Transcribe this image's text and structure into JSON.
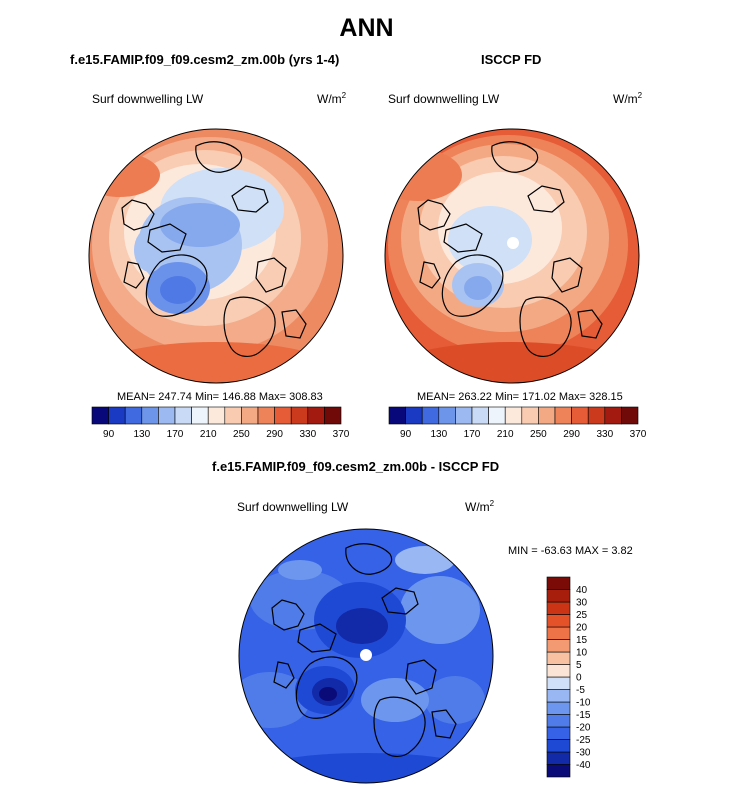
{
  "page_title": "ANN",
  "panels": [
    {
      "title": "f.e15.FAMIP.f09_f09.cesm2_zm.00b (yrs 1-4)",
      "variable": "Surf downwelling LW",
      "units": "W/m",
      "units_sup": "2",
      "stats": "MEAN= 247.74  Min= 146.88  Max= 308.83"
    },
    {
      "title": "ISCCP FD",
      "variable": "Surf downwelling LW",
      "units": "W/m",
      "units_sup": "2",
      "stats": "MEAN= 263.22  Min= 171.02  Max= 328.15"
    },
    {
      "title": "f.e15.FAMIP.f09_f09.cesm2_zm.00b - ISCCP FD",
      "variable": "Surf downwelling LW",
      "units": "W/m",
      "units_sup": "2",
      "stats": "MIN = -63.63 MAX =   3.82"
    }
  ],
  "chart_data": [
    {
      "type": "heatmap",
      "projection": "north-polar-stereographic",
      "colorbar_orientation": "horizontal",
      "colorbar_ticks": [
        "90",
        "130",
        "170",
        "210",
        "250",
        "290",
        "330",
        "370"
      ],
      "colorbar_colors": [
        "#08087a",
        "#1a3ac4",
        "#3f6ae0",
        "#6d95ea",
        "#9cbaf1",
        "#c9daf6",
        "#eef4fb",
        "#fde9dc",
        "#f9cbb1",
        "#f4a985",
        "#ee8259",
        "#e55c37",
        "#cc3a1d",
        "#a31b10",
        "#6f0a08"
      ],
      "mean": 247.74,
      "min": 146.88,
      "max": 308.83
    },
    {
      "type": "heatmap",
      "projection": "north-polar-stereographic",
      "colorbar_orientation": "horizontal",
      "colorbar_ticks": [
        "90",
        "130",
        "170",
        "210",
        "250",
        "290",
        "330",
        "370"
      ],
      "colorbar_colors": [
        "#08087a",
        "#1a3ac4",
        "#3f6ae0",
        "#6d95ea",
        "#9cbaf1",
        "#c9daf6",
        "#eef4fb",
        "#fde9dc",
        "#f9cbb1",
        "#f4a985",
        "#ee8259",
        "#e55c37",
        "#cc3a1d",
        "#a31b10",
        "#6f0a08"
      ],
      "mean": 263.22,
      "min": 171.02,
      "max": 328.15
    },
    {
      "type": "heatmap",
      "projection": "north-polar-stereographic",
      "colorbar_orientation": "vertical",
      "colorbar_ticks": [
        "-40",
        "-30",
        "-25",
        "-20",
        "-15",
        "-10",
        "-5",
        "0",
        "5",
        "10",
        "15",
        "20",
        "25",
        "30",
        "40"
      ],
      "colorbar_colors": [
        "#0a0a78",
        "#1229a8",
        "#1e49d4",
        "#3562e6",
        "#4f7ce8",
        "#6d97ee",
        "#98b7f3",
        "#cfe0f8",
        "#fbe4d6",
        "#f7c1a2",
        "#f39a72",
        "#ee7447",
        "#e4522a",
        "#cb3415",
        "#a81e0c",
        "#7a0b06"
      ],
      "min": -63.63,
      "max": 3.82
    }
  ]
}
